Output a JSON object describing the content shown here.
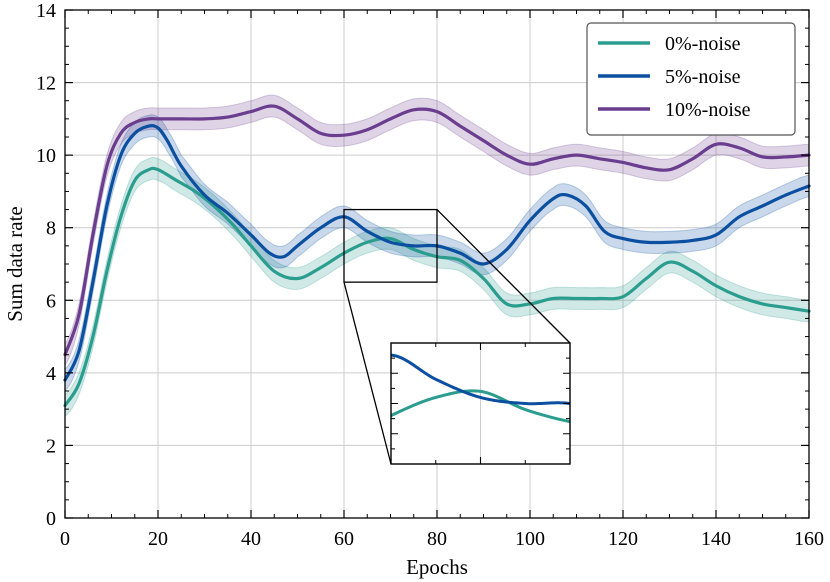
{
  "chart_data": {
    "type": "line",
    "title": "",
    "xlabel": "Epochs",
    "ylabel": "Sum data rate",
    "xlim": [
      0,
      160
    ],
    "ylim": [
      0,
      14
    ],
    "xticks": [
      0,
      20,
      40,
      60,
      80,
      100,
      120,
      140,
      160
    ],
    "yticks": [
      0,
      2,
      4,
      6,
      8,
      10,
      12,
      14
    ],
    "grid": true,
    "legend_position": "top-right",
    "band_half_width": 0.3,
    "series": [
      {
        "name": "0%-noise",
        "color": "#2a9d8f",
        "x": [
          0,
          3,
          6,
          9,
          12,
          15,
          18,
          20,
          24,
          28,
          32,
          36,
          40,
          45,
          50,
          55,
          60,
          65,
          70,
          75,
          80,
          85,
          90,
          95,
          100,
          105,
          110,
          115,
          120,
          125,
          130,
          135,
          140,
          145,
          150,
          155,
          160
        ],
        "y": [
          3.1,
          3.7,
          5.0,
          6.8,
          8.3,
          9.3,
          9.6,
          9.6,
          9.3,
          9.0,
          8.6,
          8.1,
          7.5,
          6.8,
          6.6,
          6.9,
          7.3,
          7.6,
          7.7,
          7.4,
          7.2,
          7.1,
          6.6,
          5.9,
          5.9,
          6.05,
          6.05,
          6.05,
          6.1,
          6.6,
          7.05,
          6.8,
          6.4,
          6.1,
          5.9,
          5.8,
          5.7
        ]
      },
      {
        "name": "5%-noise",
        "color": "#0b4fa0",
        "x": [
          0,
          3,
          6,
          9,
          12,
          15,
          18,
          20,
          22,
          25,
          30,
          35,
          40,
          44,
          47,
          50,
          55,
          60,
          65,
          70,
          75,
          80,
          85,
          90,
          95,
          100,
          105,
          108,
          112,
          116,
          120,
          125,
          130,
          135,
          140,
          145,
          150,
          155,
          160
        ],
        "y": [
          3.8,
          4.6,
          6.5,
          8.6,
          10.0,
          10.6,
          10.8,
          10.75,
          10.4,
          9.7,
          8.9,
          8.4,
          7.8,
          7.3,
          7.2,
          7.5,
          8.0,
          8.3,
          7.9,
          7.6,
          7.5,
          7.5,
          7.3,
          7.0,
          7.4,
          8.2,
          8.8,
          8.9,
          8.6,
          7.9,
          7.7,
          7.6,
          7.6,
          7.65,
          7.8,
          8.3,
          8.6,
          8.9,
          9.15
        ]
      },
      {
        "name": "10%-noise",
        "color": "#6a3d8e",
        "x": [
          0,
          3,
          6,
          9,
          12,
          15,
          18,
          20,
          25,
          30,
          35,
          40,
          45,
          50,
          55,
          60,
          65,
          70,
          75,
          80,
          85,
          90,
          95,
          100,
          105,
          110,
          115,
          120,
          125,
          130,
          135,
          140,
          145,
          150,
          155,
          160
        ],
        "y": [
          4.5,
          5.6,
          7.8,
          9.7,
          10.6,
          10.9,
          11.0,
          11.0,
          11.0,
          11.0,
          11.05,
          11.2,
          11.35,
          11.0,
          10.6,
          10.55,
          10.7,
          11.0,
          11.25,
          11.2,
          10.8,
          10.4,
          10.0,
          9.75,
          9.9,
          10.0,
          9.9,
          9.8,
          9.65,
          9.6,
          9.9,
          10.3,
          10.2,
          9.95,
          9.95,
          10.0
        ]
      }
    ],
    "inset": {
      "source_xlim": [
        60,
        80
      ],
      "source_ylim": [
        6.5,
        8.5
      ]
    }
  }
}
